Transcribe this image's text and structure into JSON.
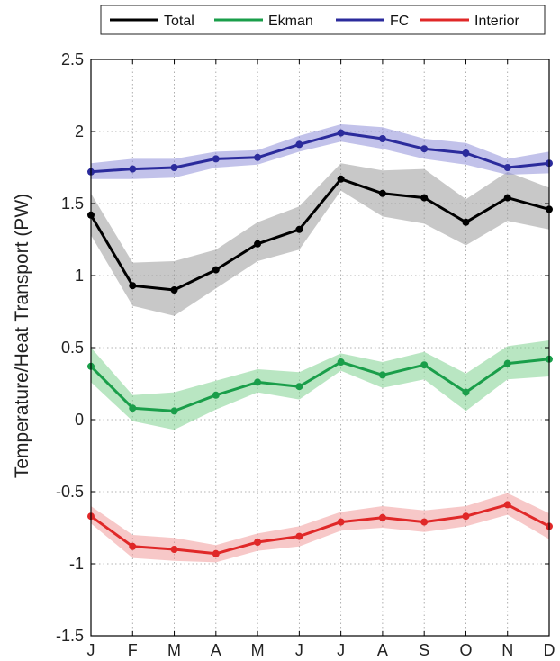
{
  "chart_data": {
    "type": "line",
    "ylabel": "Temperature/Heat Transport (PW)",
    "xlabel": "",
    "categories": [
      "J",
      "F",
      "M",
      "A",
      "M",
      "J",
      "J",
      "A",
      "S",
      "O",
      "N",
      "D"
    ],
    "ylim": [
      -1.5,
      2.5
    ],
    "yticks": [
      -1.5,
      -1,
      -0.5,
      0,
      0.5,
      1,
      1.5,
      2,
      2.5
    ],
    "ytick_labels": [
      "-1.5",
      "-1",
      "-0.5",
      "0",
      "0.5",
      "1",
      "1.5",
      "2",
      "2.5"
    ],
    "grid": true,
    "legend": "top",
    "series": [
      {
        "name": "Total",
        "color": "#000000",
        "band_color": "#9a9a9a",
        "values": [
          1.42,
          0.93,
          0.9,
          1.04,
          1.22,
          1.32,
          1.67,
          1.57,
          1.54,
          1.37,
          1.54,
          1.46
        ],
        "upper": [
          1.57,
          1.09,
          1.1,
          1.18,
          1.37,
          1.48,
          1.78,
          1.73,
          1.74,
          1.53,
          1.72,
          1.61
        ],
        "lower": [
          1.28,
          0.79,
          0.72,
          0.91,
          1.1,
          1.18,
          1.59,
          1.41,
          1.36,
          1.21,
          1.38,
          1.32
        ]
      },
      {
        "name": "Ekman",
        "color": "#1a9e4a",
        "band_color": "#7fd18f",
        "values": [
          0.37,
          0.08,
          0.06,
          0.17,
          0.26,
          0.23,
          0.4,
          0.31,
          0.38,
          0.19,
          0.39,
          0.42
        ],
        "upper": [
          0.5,
          0.17,
          0.19,
          0.27,
          0.35,
          0.33,
          0.46,
          0.4,
          0.47,
          0.32,
          0.51,
          0.55
        ],
        "lower": [
          0.26,
          -0.01,
          -0.07,
          0.07,
          0.19,
          0.14,
          0.34,
          0.22,
          0.28,
          0.06,
          0.28,
          0.3
        ]
      },
      {
        "name": "FC",
        "color": "#2b2b9c",
        "band_color": "#8f8fd8",
        "values": [
          1.72,
          1.74,
          1.75,
          1.81,
          1.82,
          1.91,
          1.99,
          1.95,
          1.88,
          1.85,
          1.75,
          1.78
        ],
        "upper": [
          1.78,
          1.81,
          1.81,
          1.86,
          1.87,
          1.97,
          2.05,
          2.03,
          1.95,
          1.92,
          1.81,
          1.86
        ],
        "lower": [
          1.67,
          1.67,
          1.68,
          1.75,
          1.77,
          1.86,
          1.93,
          1.88,
          1.81,
          1.77,
          1.7,
          1.71
        ]
      },
      {
        "name": "Interior",
        "color": "#e02828",
        "band_color": "#f19a9a",
        "values": [
          -0.67,
          -0.88,
          -0.9,
          -0.93,
          -0.85,
          -0.81,
          -0.71,
          -0.68,
          -0.71,
          -0.67,
          -0.59,
          -0.74
        ],
        "upper": [
          -0.6,
          -0.8,
          -0.82,
          -0.87,
          -0.79,
          -0.74,
          -0.64,
          -0.6,
          -0.63,
          -0.6,
          -0.51,
          -0.65
        ],
        "lower": [
          -0.72,
          -0.96,
          -0.98,
          -0.99,
          -0.91,
          -0.88,
          -0.77,
          -0.75,
          -0.78,
          -0.74,
          -0.66,
          -0.83
        ]
      }
    ]
  }
}
